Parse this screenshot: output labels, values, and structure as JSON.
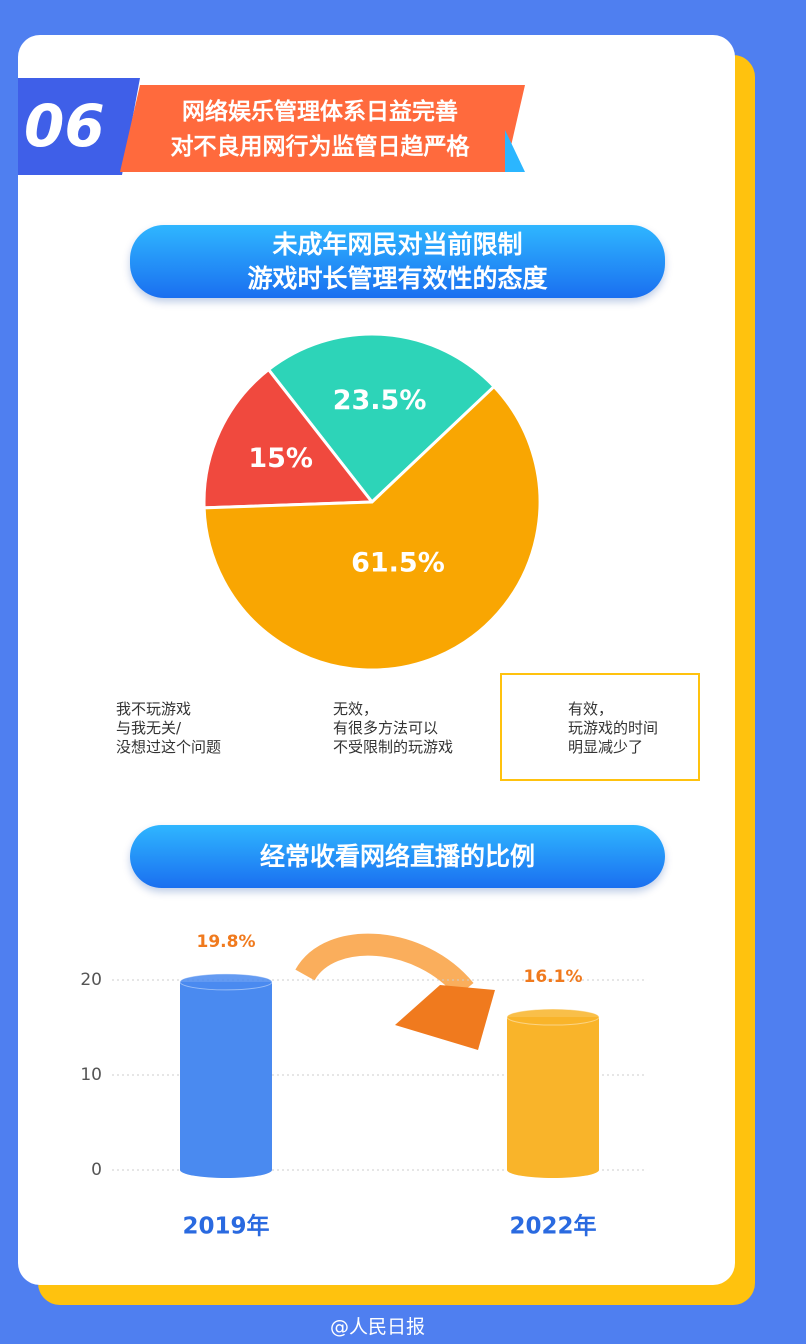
{
  "header": {
    "number": "06",
    "lines": [
      "网络娱乐管理体系日益完善",
      "对不良用网行为监管日趋严格"
    ]
  },
  "chart_data": [
    {
      "type": "pie",
      "title": "未成年网民对当前限制\n游戏时长管理有效性的态度",
      "series": [
        {
          "name": "我不玩游戏\n与我无关/\n没想过这个问题",
          "color": "#2dd4b8"
        },
        {
          "name": "无效，\n有很多方法可以\n不受限制的玩游戏",
          "color": "#f0493e"
        },
        {
          "name": "有效，\n玩游戏的时间\n明显减少了",
          "color": "#f9a602"
        }
      ],
      "values": [
        23.5,
        15,
        61.5
      ],
      "value_labels": [
        "23.5%",
        "15%",
        "61.5%"
      ]
    },
    {
      "type": "bar",
      "title": "经常收看网络直播的比例",
      "categories": [
        "2019年",
        "2022年"
      ],
      "values": [
        19.8,
        16.1
      ],
      "value_labels": [
        "19.8%",
        "16.1%"
      ],
      "colors": [
        "#4a8af0",
        "#f9b42a"
      ],
      "ylim": [
        0,
        20
      ],
      "yticks": [
        0,
        10,
        20
      ],
      "grid": true
    }
  ],
  "footer": "@人民日报"
}
